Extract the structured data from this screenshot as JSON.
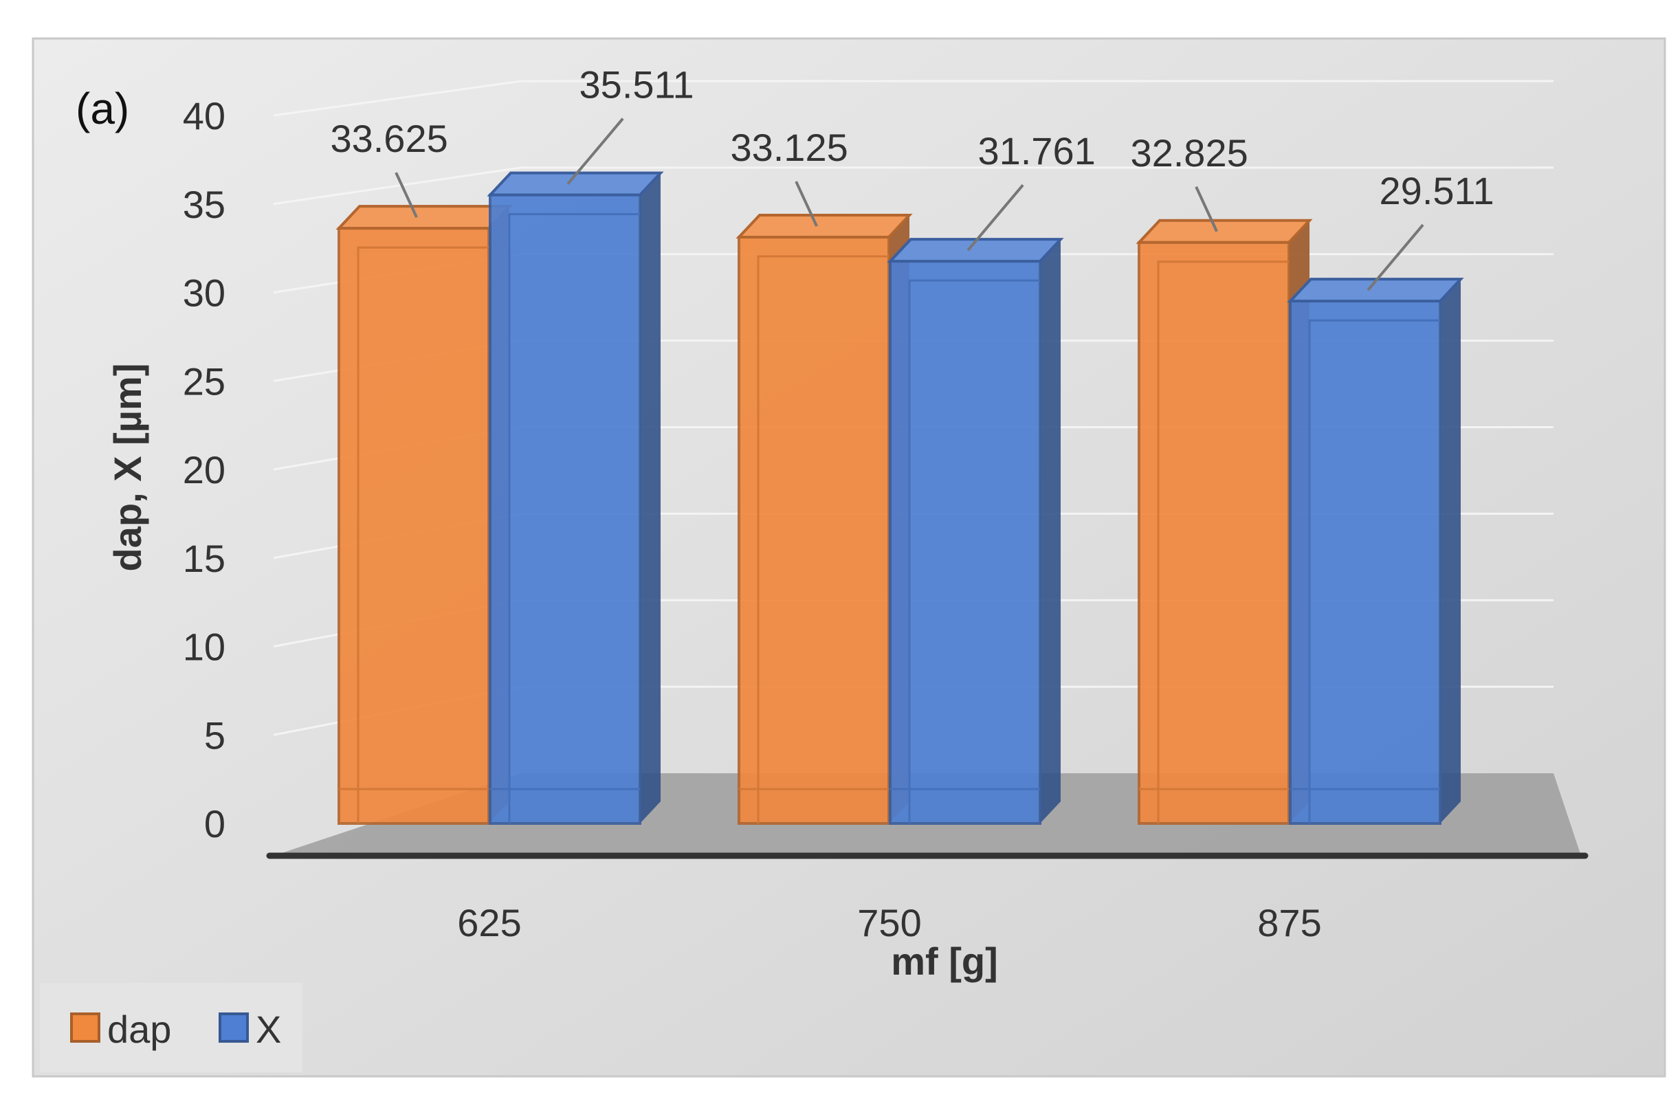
{
  "panel_label": "(a)",
  "colors": {
    "dap": "#F0883E",
    "X": "#4E7FD2",
    "background": "#DCDCDC",
    "floor": "#9E9E9E",
    "axis": "#333333"
  },
  "chart_data": {
    "type": "bar",
    "title": "",
    "xlabel": "mf [g]",
    "ylabel": "dap, X [µm]",
    "categories": [
      "625",
      "750",
      "875"
    ],
    "series": [
      {
        "name": "dap",
        "values": [
          33.625,
          33.125,
          32.825
        ],
        "labels": [
          "33.625",
          "33.125",
          "32.825"
        ]
      },
      {
        "name": "X",
        "values": [
          35.511,
          31.761,
          29.511
        ],
        "labels": [
          "35.511",
          "31.761",
          "29.511"
        ]
      }
    ],
    "ylim": [
      0,
      40
    ],
    "yticks": [
      "0",
      "5",
      "10",
      "15",
      "20",
      "25",
      "30",
      "35",
      "40"
    ],
    "grid": true,
    "legend_position": "bottom-left",
    "style": "3d-column"
  }
}
